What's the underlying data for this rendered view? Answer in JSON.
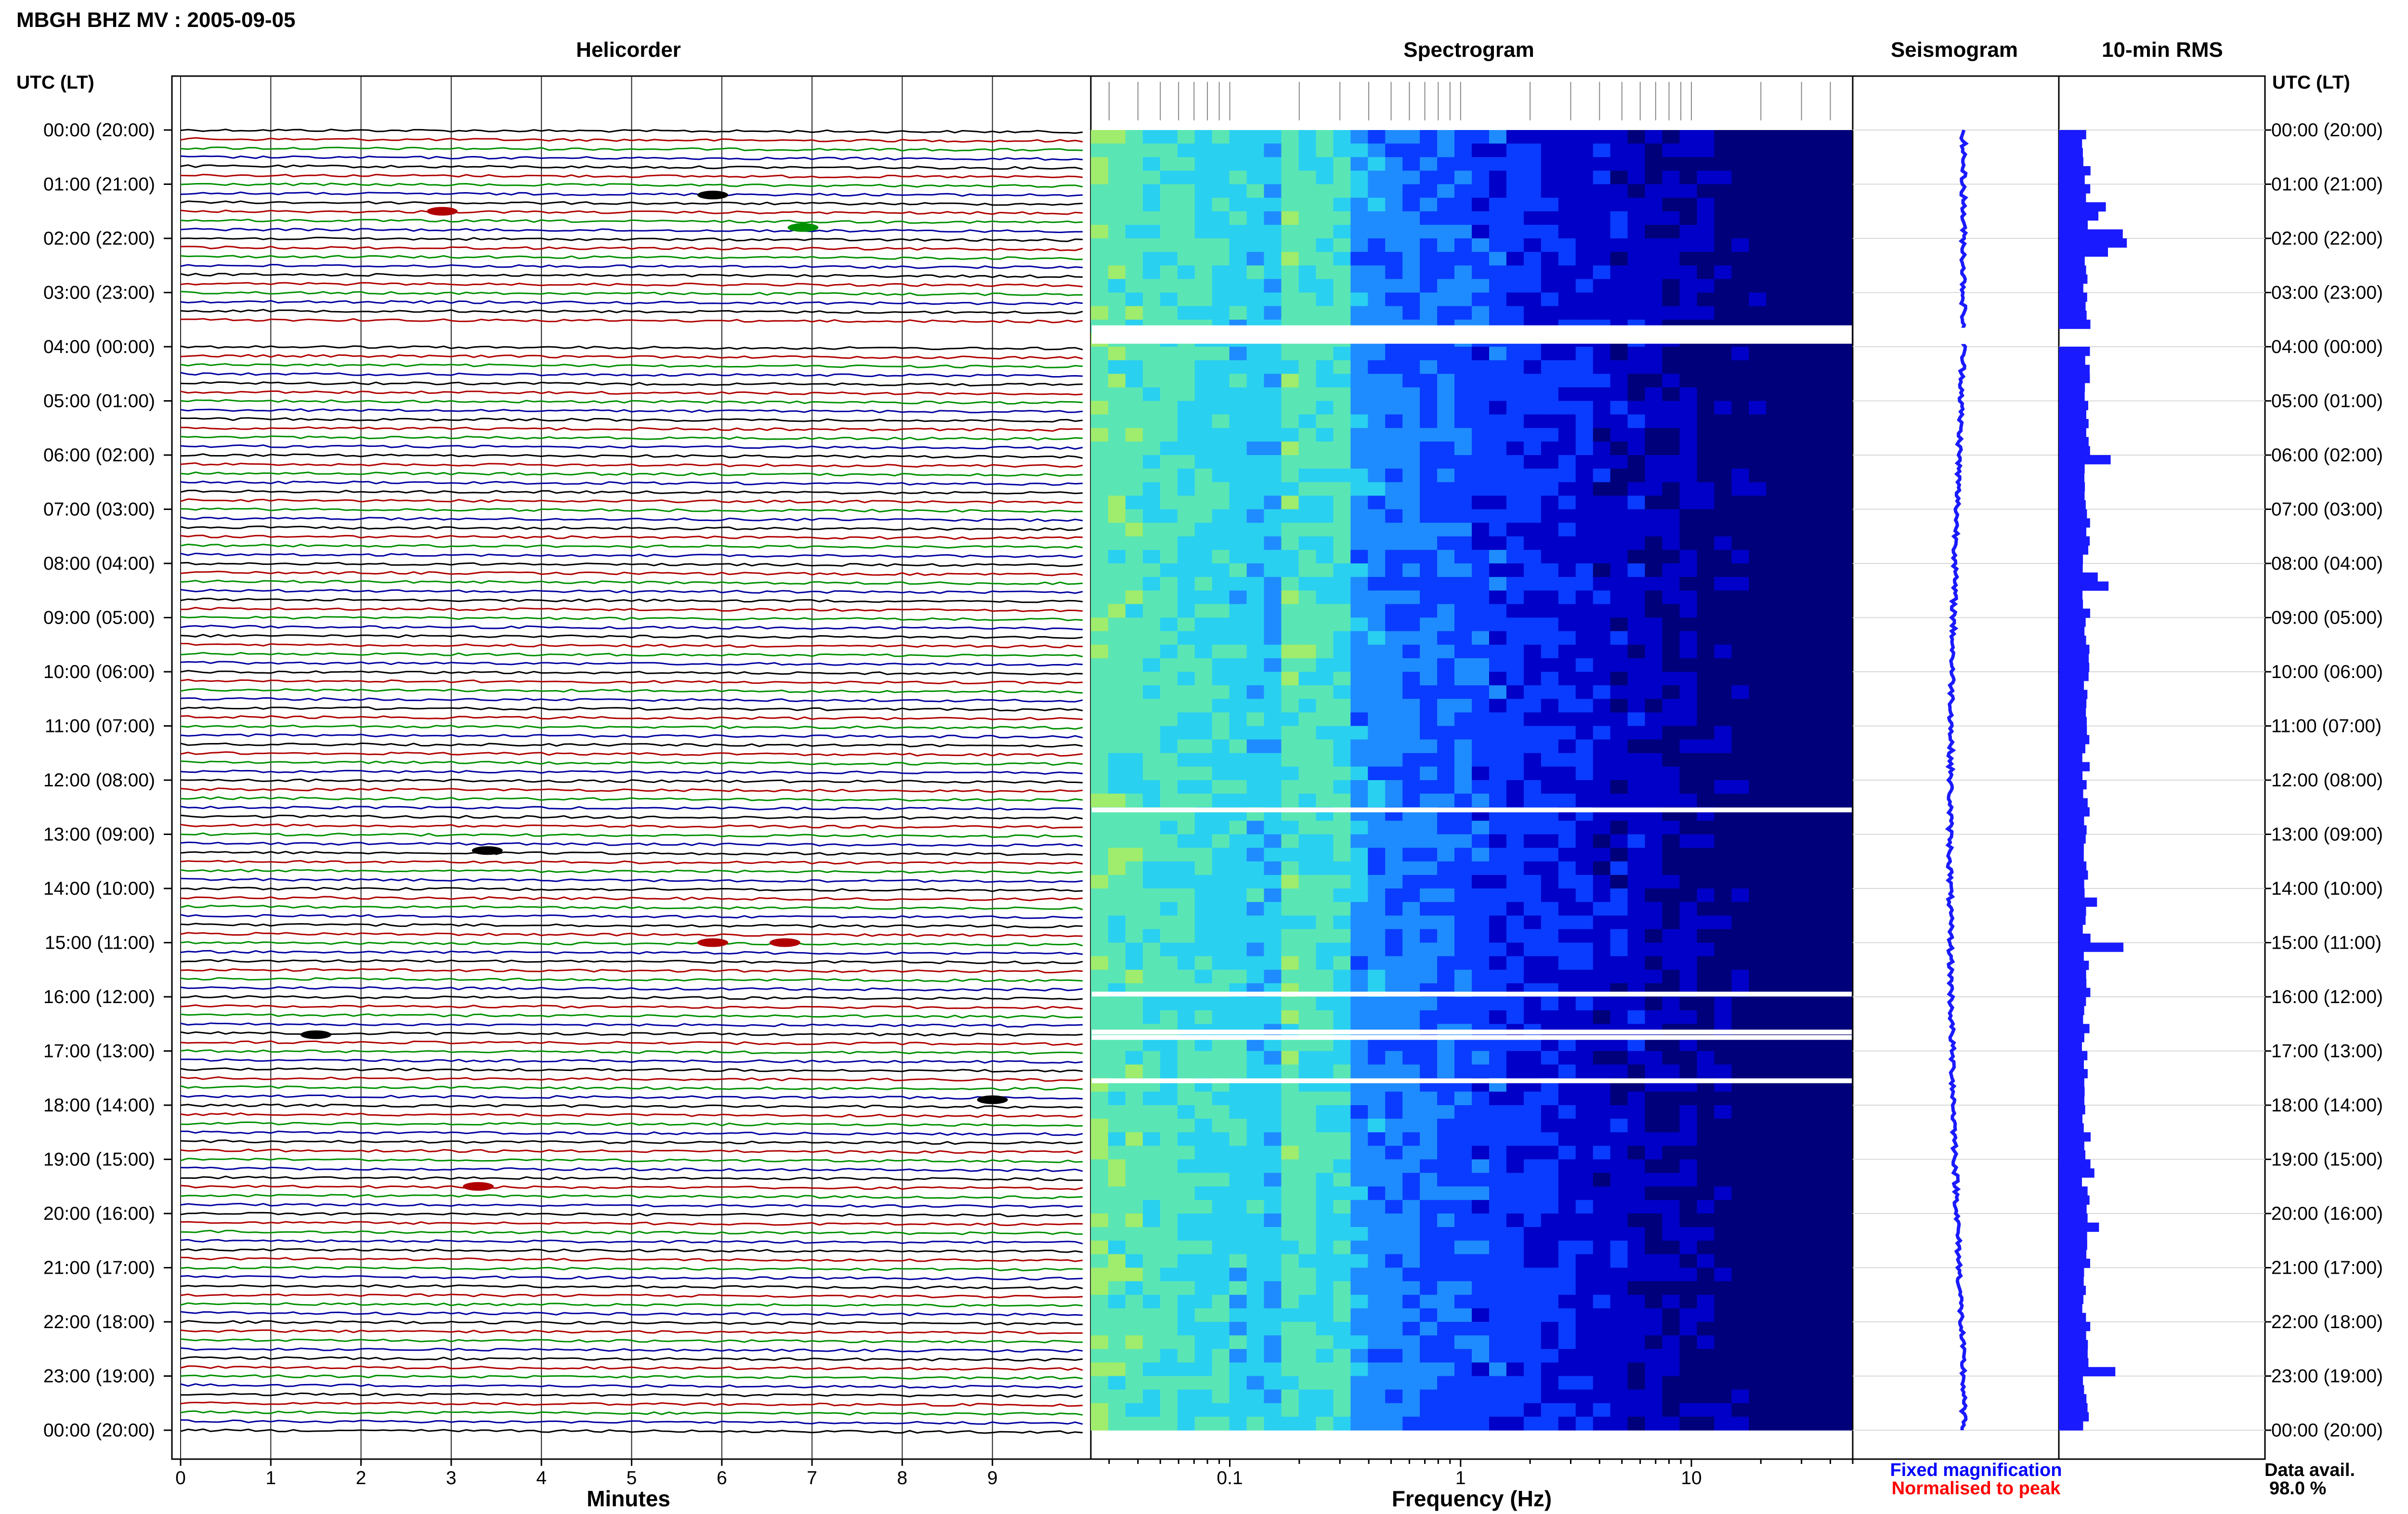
{
  "header": {
    "title": "MBGH BHZ MV : 2005-09-05"
  },
  "time_axis": {
    "left_label": "UTC (LT)",
    "right_label": "UTC (LT)",
    "ticks": [
      "00:00 (20:00)",
      "01:00 (21:00)",
      "02:00 (22:00)",
      "03:00 (23:00)",
      "04:00 (00:00)",
      "05:00 (01:00)",
      "06:00 (02:00)",
      "07:00 (03:00)",
      "08:00 (04:00)",
      "09:00 (05:00)",
      "10:00 (06:00)",
      "11:00 (07:00)",
      "12:00 (08:00)",
      "13:00 (09:00)",
      "14:00 (10:00)",
      "15:00 (11:00)",
      "16:00 (12:00)",
      "17:00 (13:00)",
      "18:00 (14:00)",
      "19:00 (15:00)",
      "20:00 (16:00)",
      "21:00 (17:00)",
      "22:00 (18:00)",
      "23:00 (19:00)",
      "00:00 (20:00)"
    ]
  },
  "panels": {
    "helicorder": "Helicorder",
    "spectrogram": "Spectrogram",
    "seismogram": "Seismogram",
    "rms": "10-min RMS"
  },
  "footer": {
    "minutes_label": "Minutes",
    "frequency_label": "Frequency (Hz)",
    "fixed_magnification": "Fixed magnification",
    "normalised_to_peak": "Normalised to peak",
    "data_avail_label": "Data avail.",
    "data_avail_value": "98.0 %"
  },
  "colors": {
    "trace_cycle": [
      "#000000",
      "#b00000",
      "#009000",
      "#0000a0"
    ],
    "fixed_magnification": "#0000ff",
    "normalised_to_peak": "#ff0000",
    "rms_bar": "#1a1aff",
    "seismogram": "#1a1aff"
  },
  "chart_data": [
    {
      "type": "line",
      "panel": "helicorder",
      "x_label": "Minutes",
      "x_ticks": [
        "0",
        "1",
        "2",
        "3",
        "4",
        "5",
        "6",
        "7",
        "8",
        "9"
      ],
      "xlim": [
        0,
        10
      ],
      "rows_per_hour": 6,
      "hours": 24,
      "events": [
        {
          "hour": 1.2,
          "minute": 5.9,
          "color": "#000000"
        },
        {
          "hour": 1.5,
          "minute": 2.9,
          "color": "#b00000"
        },
        {
          "hour": 1.8,
          "minute": 6.9,
          "color": "#009000"
        },
        {
          "hour": 13.3,
          "minute": 3.4,
          "color": "#000000"
        },
        {
          "hour": 15.0,
          "minute": 5.9,
          "color": "#b00000"
        },
        {
          "hour": 15.0,
          "minute": 6.7,
          "color": "#b00000"
        },
        {
          "hour": 16.7,
          "minute": 1.5,
          "color": "#000000"
        },
        {
          "hour": 17.9,
          "minute": 9.0,
          "color": "#000000"
        },
        {
          "hour": 19.5,
          "minute": 3.3,
          "color": "#b00000"
        }
      ],
      "data_gaps": [
        {
          "hour_start": 3.6,
          "hour_end": 3.95
        }
      ]
    },
    {
      "type": "heatmap",
      "panel": "spectrogram",
      "x_label": "Frequency (Hz)",
      "x_scale": "log",
      "x_ticks": [
        "0.1",
        "1",
        "10"
      ],
      "xlim": [
        0.025,
        50
      ],
      "colormap": [
        "#00007a",
        "#0000c8",
        "#0a3cff",
        "#1e8cff",
        "#2ad0f0",
        "#5ae6b4",
        "#a0ec6c"
      ],
      "gaps_hours": [
        3.65,
        3.7,
        3.75,
        3.8,
        3.85,
        3.9,
        12.55,
        15.95,
        16.65,
        16.75,
        17.55
      ]
    },
    {
      "type": "line",
      "panel": "seismogram",
      "ylim": [
        0,
        24
      ]
    },
    {
      "type": "bar",
      "panel": "rms",
      "orientation": "horizontal",
      "ylim": [
        0,
        24
      ]
    }
  ]
}
